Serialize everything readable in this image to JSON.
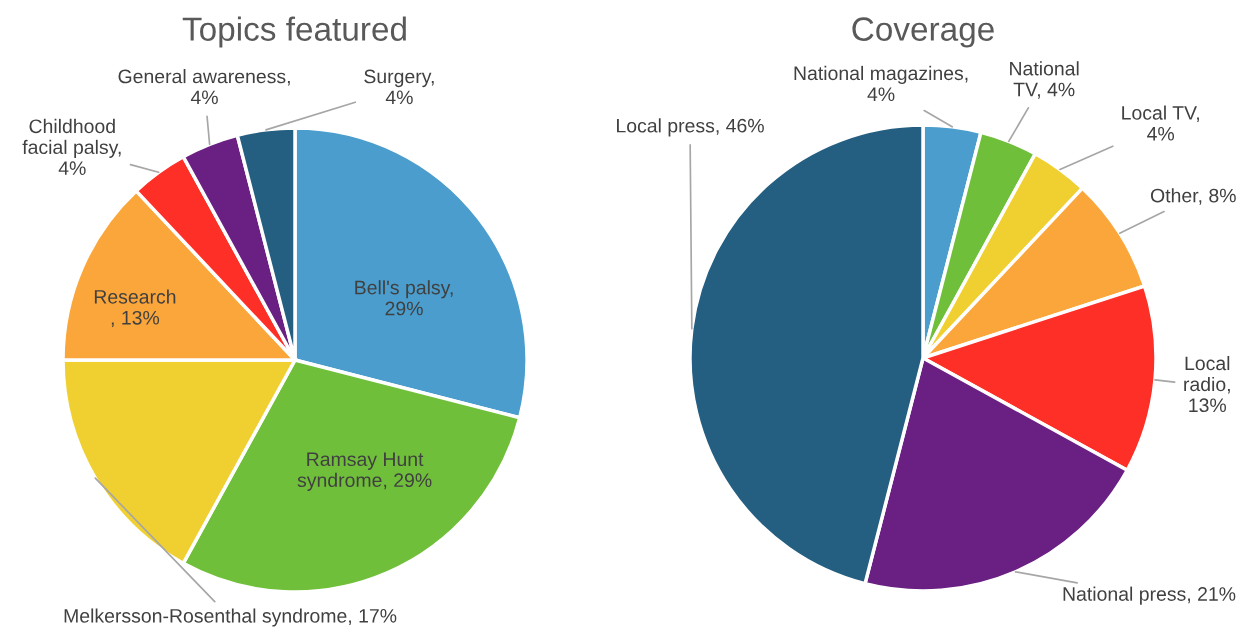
{
  "chart_data": [
    {
      "type": "pie",
      "title": "Topics featured",
      "categories": [
        "Bell's palsy,\n29%",
        "Ramsay Hunt\nsyndrome, 29%",
        "Melkersson-Rosenthal syndrome, 17%",
        "Research\n, 13%",
        "Childhood\nfacial palsy,\n4%",
        "General awareness,\n4%",
        "Surgery,\n4%"
      ],
      "values": [
        29,
        29,
        17,
        13,
        4,
        4,
        4
      ],
      "colors": [
        "#4a9dcc",
        "#70bf3a",
        "#f0d030",
        "#fba63a",
        "#fe2f26",
        "#6a1f83",
        "#245e80"
      ]
    },
    {
      "type": "pie",
      "title": "Coverage",
      "categories": [
        "National magazines,\n4%",
        "National\nTV, 4%",
        "Local TV,\n4%",
        "Other, 8%",
        "Local\nradio,\n13%",
        "National press, 21%",
        "Local press, 46%"
      ],
      "values": [
        4,
        4,
        4,
        8,
        13,
        21,
        46
      ],
      "colors": [
        "#4a9dcc",
        "#70bf3a",
        "#f0d030",
        "#fba63a",
        "#fe2f26",
        "#6a1f83",
        "#245e80"
      ]
    }
  ]
}
